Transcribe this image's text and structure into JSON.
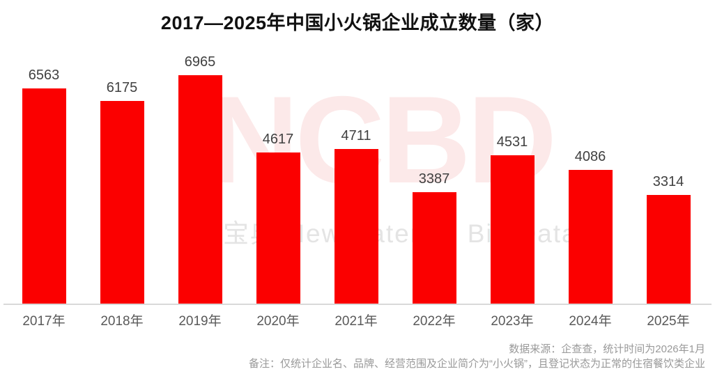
{
  "chart_data": {
    "type": "bar",
    "title": "2017—2025年中国小火锅企业成立数量（家）",
    "categories": [
      "2017年",
      "2018年",
      "2019年",
      "2020年",
      "2021年",
      "2022年",
      "2023年",
      "2024年",
      "2025年"
    ],
    "values": [
      6563,
      6175,
      6965,
      4617,
      4711,
      3387,
      4531,
      4086,
      3314
    ],
    "xlabel": "",
    "ylabel": "",
    "ylim": [
      0,
      6965
    ],
    "grid": false,
    "legend": false,
    "data_labels": true,
    "bar_color": "#fb0000"
  },
  "watermarks": {
    "logo": "NCBD",
    "logo_color": "#fce9e9",
    "subtext": "餐宝典 New Catering Big Data",
    "subtext_color": "#e4e4e4"
  },
  "footer": {
    "source": "数据来源：企查查，统计时间为2026年1月",
    "note": "备注：仅统计企业名、品牌、经营范围及企业简介为“小火锅”，且登记状态为正常的住宿餐饮类企业"
  },
  "colors": {
    "title_text": "#111111",
    "value_label": "#404040",
    "axis_label": "#595959",
    "axis_line": "#d9d9d9",
    "footer_text": "#999999"
  }
}
